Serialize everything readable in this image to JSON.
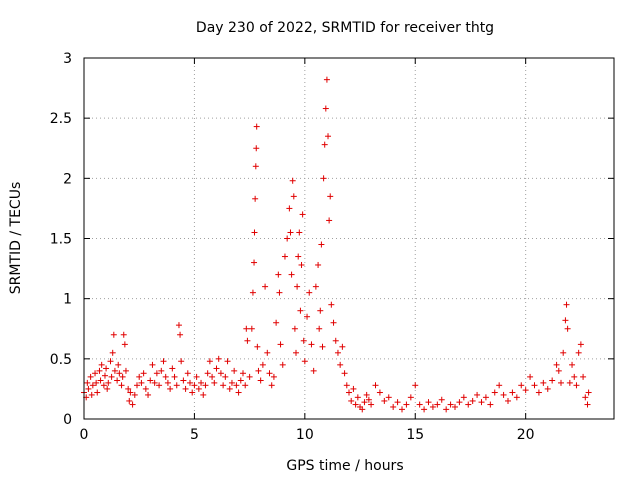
{
  "chart_data": {
    "type": "scatter",
    "title": "Day 230 of 2022, SRMTID for receiver thtg",
    "xlabel": "GPS time / hours",
    "ylabel": "SRMTID / TECUs",
    "xlim": [
      0,
      24
    ],
    "ylim": [
      0,
      3
    ],
    "xticks": [
      0,
      5,
      10,
      15,
      20
    ],
    "yticks": [
      0,
      0.5,
      1,
      1.5,
      2,
      2.5,
      3
    ],
    "xtick_labels": [
      "0",
      "5",
      "10",
      "15",
      "20"
    ],
    "ytick_labels": [
      "0",
      "0.5",
      "1",
      "1.5",
      "2",
      "2.5",
      "3"
    ],
    "grid": true,
    "marker": "+",
    "color": "#e00000",
    "series": [
      {
        "name": "SRMTID",
        "points": [
          [
            0.0,
            0.22
          ],
          [
            0.1,
            0.18
          ],
          [
            0.15,
            0.3
          ],
          [
            0.2,
            0.25
          ],
          [
            0.3,
            0.35
          ],
          [
            0.35,
            0.2
          ],
          [
            0.4,
            0.28
          ],
          [
            0.5,
            0.38
          ],
          [
            0.55,
            0.3
          ],
          [
            0.6,
            0.22
          ],
          [
            0.7,
            0.4
          ],
          [
            0.75,
            0.32
          ],
          [
            0.8,
            0.45
          ],
          [
            0.9,
            0.28
          ],
          [
            0.95,
            0.36
          ],
          [
            1.0,
            0.42
          ],
          [
            1.05,
            0.25
          ],
          [
            1.1,
            0.3
          ],
          [
            1.2,
            0.48
          ],
          [
            1.25,
            0.35
          ],
          [
            1.3,
            0.55
          ],
          [
            1.35,
            0.7
          ],
          [
            1.4,
            0.4
          ],
          [
            1.5,
            0.32
          ],
          [
            1.55,
            0.45
          ],
          [
            1.6,
            0.38
          ],
          [
            1.7,
            0.28
          ],
          [
            1.75,
            0.35
          ],
          [
            1.8,
            0.7
          ],
          [
            1.85,
            0.62
          ],
          [
            1.9,
            0.4
          ],
          [
            2.0,
            0.25
          ],
          [
            2.05,
            0.15
          ],
          [
            2.1,
            0.22
          ],
          [
            2.2,
            0.12
          ],
          [
            2.3,
            0.2
          ],
          [
            2.4,
            0.28
          ],
          [
            2.5,
            0.35
          ],
          [
            2.6,
            0.3
          ],
          [
            2.7,
            0.38
          ],
          [
            2.8,
            0.25
          ],
          [
            2.9,
            0.2
          ],
          [
            3.0,
            0.32
          ],
          [
            3.1,
            0.45
          ],
          [
            3.2,
            0.3
          ],
          [
            3.3,
            0.38
          ],
          [
            3.4,
            0.28
          ],
          [
            3.5,
            0.4
          ],
          [
            3.6,
            0.48
          ],
          [
            3.7,
            0.35
          ],
          [
            3.8,
            0.3
          ],
          [
            3.9,
            0.25
          ],
          [
            4.0,
            0.42
          ],
          [
            4.1,
            0.35
          ],
          [
            4.2,
            0.28
          ],
          [
            4.3,
            0.78
          ],
          [
            4.35,
            0.7
          ],
          [
            4.4,
            0.48
          ],
          [
            4.5,
            0.32
          ],
          [
            4.6,
            0.25
          ],
          [
            4.7,
            0.38
          ],
          [
            4.8,
            0.3
          ],
          [
            4.9,
            0.22
          ],
          [
            5.0,
            0.28
          ],
          [
            5.1,
            0.35
          ],
          [
            5.2,
            0.25
          ],
          [
            5.3,
            0.3
          ],
          [
            5.4,
            0.2
          ],
          [
            5.5,
            0.28
          ],
          [
            5.6,
            0.38
          ],
          [
            5.7,
            0.48
          ],
          [
            5.8,
            0.35
          ],
          [
            5.9,
            0.3
          ],
          [
            6.0,
            0.42
          ],
          [
            6.1,
            0.5
          ],
          [
            6.2,
            0.38
          ],
          [
            6.3,
            0.28
          ],
          [
            6.4,
            0.35
          ],
          [
            6.5,
            0.48
          ],
          [
            6.6,
            0.25
          ],
          [
            6.7,
            0.3
          ],
          [
            6.8,
            0.4
          ],
          [
            6.9,
            0.28
          ],
          [
            7.0,
            0.22
          ],
          [
            7.1,
            0.32
          ],
          [
            7.2,
            0.38
          ],
          [
            7.3,
            0.28
          ],
          [
            7.35,
            0.75
          ],
          [
            7.4,
            0.65
          ],
          [
            7.5,
            0.35
          ],
          [
            7.6,
            0.75
          ],
          [
            7.65,
            1.05
          ],
          [
            7.7,
            1.3
          ],
          [
            7.72,
            1.55
          ],
          [
            7.75,
            1.83
          ],
          [
            7.78,
            2.1
          ],
          [
            7.8,
            2.25
          ],
          [
            7.82,
            2.43
          ],
          [
            7.85,
            0.6
          ],
          [
            7.9,
            0.4
          ],
          [
            8.0,
            0.32
          ],
          [
            8.1,
            0.45
          ],
          [
            8.2,
            1.1
          ],
          [
            8.3,
            0.55
          ],
          [
            8.4,
            0.38
          ],
          [
            8.5,
            0.28
          ],
          [
            8.6,
            0.35
          ],
          [
            8.7,
            0.8
          ],
          [
            8.8,
            1.2
          ],
          [
            8.85,
            1.05
          ],
          [
            8.9,
            0.62
          ],
          [
            9.0,
            0.45
          ],
          [
            9.1,
            1.35
          ],
          [
            9.2,
            1.5
          ],
          [
            9.3,
            1.75
          ],
          [
            9.35,
            1.55
          ],
          [
            9.4,
            1.2
          ],
          [
            9.45,
            1.98
          ],
          [
            9.5,
            1.85
          ],
          [
            9.55,
            0.75
          ],
          [
            9.6,
            0.55
          ],
          [
            9.65,
            1.1
          ],
          [
            9.7,
            1.35
          ],
          [
            9.75,
            1.55
          ],
          [
            9.8,
            0.9
          ],
          [
            9.85,
            1.28
          ],
          [
            9.9,
            1.7
          ],
          [
            9.95,
            0.65
          ],
          [
            10.0,
            0.48
          ],
          [
            10.1,
            0.85
          ],
          [
            10.2,
            1.05
          ],
          [
            10.3,
            0.62
          ],
          [
            10.4,
            0.4
          ],
          [
            10.5,
            1.1
          ],
          [
            10.6,
            1.28
          ],
          [
            10.65,
            0.75
          ],
          [
            10.7,
            0.9
          ],
          [
            10.75,
            1.45
          ],
          [
            10.8,
            0.6
          ],
          [
            10.85,
            2.0
          ],
          [
            10.9,
            2.28
          ],
          [
            10.95,
            2.58
          ],
          [
            11.0,
            2.82
          ],
          [
            11.05,
            2.35
          ],
          [
            11.1,
            1.65
          ],
          [
            11.15,
            1.85
          ],
          [
            11.2,
            0.95
          ],
          [
            11.3,
            0.8
          ],
          [
            11.4,
            0.65
          ],
          [
            11.5,
            0.55
          ],
          [
            11.6,
            0.45
          ],
          [
            11.7,
            0.6
          ],
          [
            11.8,
            0.38
          ],
          [
            11.9,
            0.28
          ],
          [
            12.0,
            0.22
          ],
          [
            12.1,
            0.15
          ],
          [
            12.2,
            0.25
          ],
          [
            12.3,
            0.12
          ],
          [
            12.4,
            0.18
          ],
          [
            12.5,
            0.1
          ],
          [
            12.6,
            0.08
          ],
          [
            12.7,
            0.14
          ],
          [
            12.8,
            0.2
          ],
          [
            12.9,
            0.16
          ],
          [
            13.0,
            0.12
          ],
          [
            13.2,
            0.28
          ],
          [
            13.4,
            0.22
          ],
          [
            13.6,
            0.15
          ],
          [
            13.8,
            0.18
          ],
          [
            14.0,
            0.1
          ],
          [
            14.2,
            0.14
          ],
          [
            14.4,
            0.08
          ],
          [
            14.6,
            0.12
          ],
          [
            14.8,
            0.18
          ],
          [
            15.0,
            0.28
          ],
          [
            15.2,
            0.12
          ],
          [
            15.4,
            0.08
          ],
          [
            15.6,
            0.14
          ],
          [
            15.8,
            0.1
          ],
          [
            16.0,
            0.12
          ],
          [
            16.2,
            0.16
          ],
          [
            16.4,
            0.08
          ],
          [
            16.6,
            0.12
          ],
          [
            16.8,
            0.1
          ],
          [
            17.0,
            0.14
          ],
          [
            17.2,
            0.18
          ],
          [
            17.4,
            0.12
          ],
          [
            17.6,
            0.15
          ],
          [
            17.8,
            0.2
          ],
          [
            18.0,
            0.14
          ],
          [
            18.2,
            0.18
          ],
          [
            18.4,
            0.12
          ],
          [
            18.6,
            0.22
          ],
          [
            18.8,
            0.28
          ],
          [
            19.0,
            0.2
          ],
          [
            19.2,
            0.15
          ],
          [
            19.4,
            0.22
          ],
          [
            19.6,
            0.18
          ],
          [
            19.8,
            0.28
          ],
          [
            20.0,
            0.24
          ],
          [
            20.2,
            0.35
          ],
          [
            20.4,
            0.28
          ],
          [
            20.6,
            0.22
          ],
          [
            20.8,
            0.3
          ],
          [
            21.0,
            0.25
          ],
          [
            21.2,
            0.32
          ],
          [
            21.4,
            0.45
          ],
          [
            21.5,
            0.4
          ],
          [
            21.6,
            0.3
          ],
          [
            21.7,
            0.55
          ],
          [
            21.8,
            0.82
          ],
          [
            21.85,
            0.95
          ],
          [
            21.9,
            0.75
          ],
          [
            22.0,
            0.3
          ],
          [
            22.1,
            0.45
          ],
          [
            22.2,
            0.35
          ],
          [
            22.3,
            0.28
          ],
          [
            22.4,
            0.55
          ],
          [
            22.5,
            0.62
          ],
          [
            22.6,
            0.35
          ],
          [
            22.7,
            0.18
          ],
          [
            22.8,
            0.12
          ],
          [
            22.85,
            0.22
          ]
        ]
      }
    ]
  }
}
